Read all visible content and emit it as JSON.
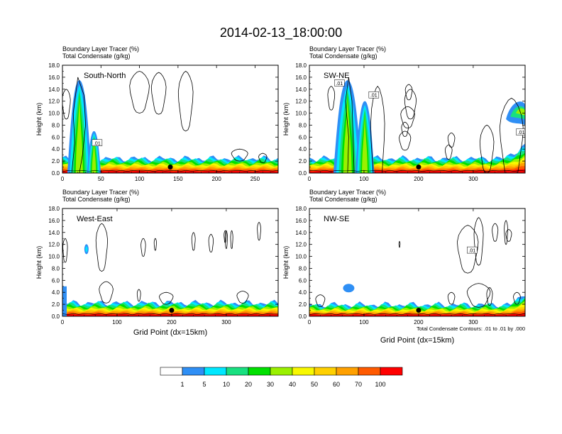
{
  "page_title": "2014-02-13_18:00:00",
  "colors": {
    "levels": [
      "#ffffff",
      "#2f8ff5",
      "#00e8ff",
      "#18e080",
      "#00e000",
      "#9af000",
      "#f8f800",
      "#ffd000",
      "#ffa000",
      "#ff5a00",
      "#ff0000"
    ]
  },
  "chart_data": [
    {
      "type": "heatmap",
      "id": "south-north",
      "label": "South-North",
      "title_line1": "Boundary Layer Tracer    (%)",
      "title_line2": "Total Condensate    (g/kg)",
      "ylabel": "Height (km)",
      "xlabel": "",
      "xlim": [
        0,
        280
      ],
      "xticks": [
        0,
        50,
        100,
        150,
        200,
        250
      ],
      "ylim": [
        0,
        18
      ],
      "yticks": [
        "0.0",
        "2.0",
        "4.0",
        "6.0",
        "8.0",
        "10.0",
        "12.0",
        "14.0",
        "16.0",
        "18.0"
      ],
      "marker_x": 140,
      "contour_labels": [
        ".01"
      ],
      "footer": ""
    },
    {
      "type": "heatmap",
      "id": "sw-ne",
      "label": "SW-NE",
      "title_line1": "Boundary Layer Tracer    (%)",
      "title_line2": "Total Condensate    (g/kg)",
      "ylabel": "Height (km)",
      "xlabel": "",
      "xlim": [
        0,
        395
      ],
      "xticks": [
        0,
        100,
        200,
        300
      ],
      "ylim": [
        0,
        18
      ],
      "yticks": [
        "0.0",
        "2.0",
        "4.0",
        "6.0",
        "8.0",
        "10.0",
        "12.0",
        "14.0",
        "16.0",
        "18.0"
      ],
      "marker_x": 200,
      "contour_labels": [
        ".01",
        ".01",
        ".01"
      ],
      "footer": ""
    },
    {
      "type": "heatmap",
      "id": "west-east",
      "label": "West-East",
      "title_line1": "Boundary Layer Tracer    (%)",
      "title_line2": "Total Condensate    (g/kg)",
      "ylabel": "Height (km)",
      "xlabel": "Grid Point (dx=15km)",
      "xlim": [
        0,
        395
      ],
      "xticks": [
        0,
        100,
        200,
        300
      ],
      "ylim": [
        0,
        18
      ],
      "yticks": [
        "0.0",
        "2.0",
        "4.0",
        "6.0",
        "8.0",
        "10.0",
        "12.0",
        "14.0",
        "16.0",
        "18.0"
      ],
      "marker_x": 200,
      "contour_labels": [],
      "footer": ""
    },
    {
      "type": "heatmap",
      "id": "nw-se",
      "label": "NW-SE",
      "title_line1": "Boundary Layer Tracer    (%)",
      "title_line2": "Total Condensate    (g/kg)",
      "ylabel": "Height (km)",
      "xlabel": "Grid Point (dx=15km)",
      "xlim": [
        0,
        395
      ],
      "xticks": [
        0,
        100,
        200,
        300
      ],
      "ylim": [
        0,
        18
      ],
      "yticks": [
        "0.0",
        "2.0",
        "4.0",
        "6.0",
        "8.0",
        "10.0",
        "12.0",
        "14.0",
        "16.0",
        "18.0"
      ],
      "marker_x": 200,
      "contour_labels": [
        ".01"
      ],
      "footer": "Total Condensate Contours: .01 to .01 by .000"
    }
  ],
  "colorbar": {
    "labels": [
      "1",
      "5",
      "10",
      "20",
      "30",
      "40",
      "50",
      "60",
      "70",
      "100"
    ]
  }
}
